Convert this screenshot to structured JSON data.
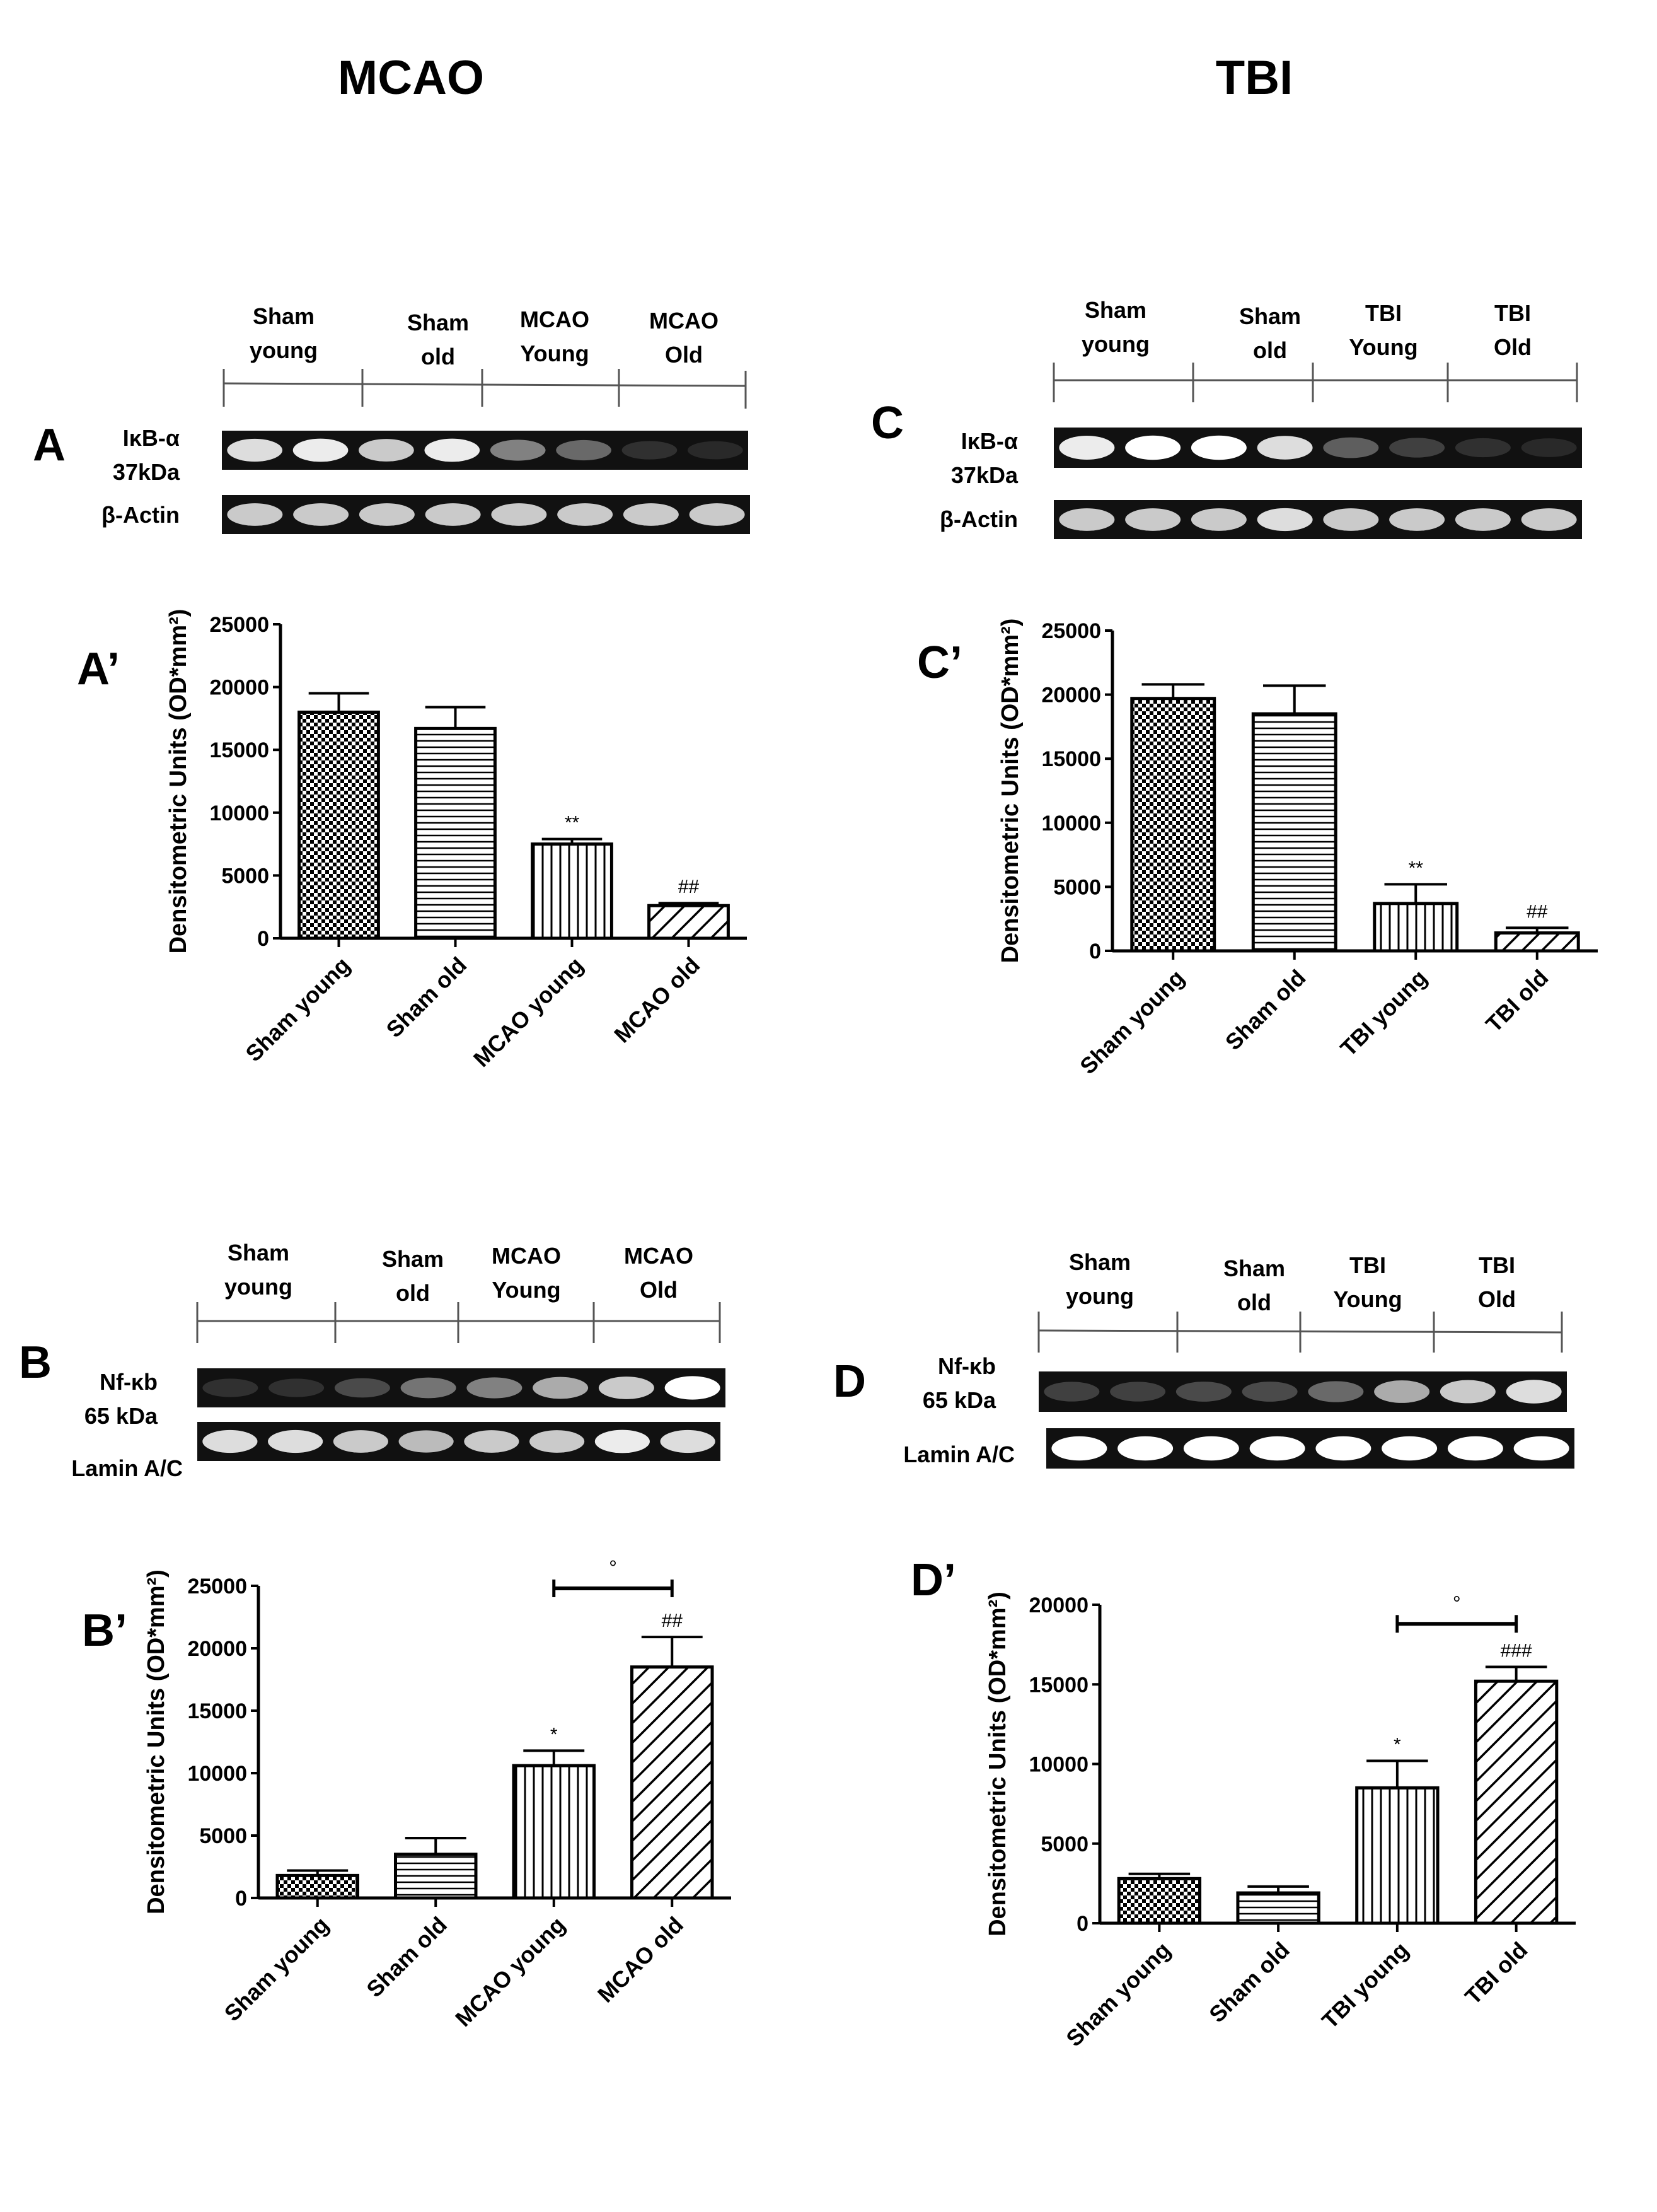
{
  "columns": {
    "left": "MCAO",
    "right": "TBI"
  },
  "panels": {
    "A": {
      "letter": "A",
      "lanes": [
        "Sham\nyoung",
        "Sham\nold",
        "MCAO\nYoung",
        "MCAO\nOld"
      ],
      "protein": "IκB-α\n37kDa",
      "loading": "β-Actin"
    },
    "C": {
      "letter": "C",
      "lanes": [
        "Sham\nyoung",
        "Sham\nold",
        "TBI\nYoung",
        "TBI\nOld"
      ],
      "protein": "IκB-α\n37kDa",
      "loading": "β-Actin"
    },
    "B": {
      "letter": "B",
      "lanes": [
        "Sham\nyoung",
        "Sham\nold",
        "MCAO\nYoung",
        "MCAO\nOld"
      ],
      "protein": "Nf-κb\n65 kDa",
      "loading": "Lamin A/C"
    },
    "D": {
      "letter": "D",
      "lanes": [
        "Sham\nyoung",
        "Sham\nold",
        "TBI\nYoung",
        "TBI\nOld"
      ],
      "protein": "Nf-κb\n65 kDa",
      "loading": "Lamin A/C"
    },
    "A2": {
      "letter": "A’"
    },
    "C2": {
      "letter": "C’"
    },
    "B2": {
      "letter": "B’"
    },
    "D2": {
      "letter": "D’"
    }
  },
  "chart_data": [
    {
      "id": "A-prime",
      "type": "bar",
      "ylabel": "Densitometric Units (OD*mm²)",
      "categories": [
        "Sham young",
        "Sham old",
        "MCAO young",
        "MCAO old"
      ],
      "values": [
        18000,
        16700,
        7500,
        2600
      ],
      "errors": [
        1500,
        1700,
        400,
        200
      ],
      "annotations": [
        "",
        "",
        "**",
        "##"
      ],
      "patterns": [
        "checker",
        "hlines",
        "vlines",
        "diag"
      ],
      "ylim": [
        0,
        25000
      ],
      "yticks": [
        0,
        5000,
        10000,
        15000,
        20000,
        25000
      ]
    },
    {
      "id": "C-prime",
      "type": "bar",
      "ylabel": "Densitometric Units (OD*mm²)",
      "categories": [
        "Sham young",
        "Sham old",
        "TBI young",
        "TBI old"
      ],
      "values": [
        19700,
        18500,
        3700,
        1400
      ],
      "errors": [
        1100,
        2200,
        1500,
        400
      ],
      "annotations": [
        "",
        "",
        "**",
        "##"
      ],
      "patterns": [
        "checker",
        "hlines",
        "vlines",
        "diag"
      ],
      "ylim": [
        0,
        25000
      ],
      "yticks": [
        0,
        5000,
        10000,
        15000,
        20000,
        25000
      ]
    },
    {
      "id": "B-prime",
      "type": "bar",
      "ylabel": "Densitometric Units (OD*mm²)",
      "categories": [
        "Sham young",
        "Sham old",
        "MCAO young",
        "MCAO old"
      ],
      "values": [
        1800,
        3500,
        10600,
        18500
      ],
      "errors": [
        400,
        1300,
        1200,
        2400
      ],
      "annotations": [
        "",
        "",
        "*",
        "##"
      ],
      "bracket": {
        "from": 2,
        "to": 3,
        "label": "°",
        "y": 24800
      },
      "patterns": [
        "checker",
        "hlines",
        "vlines",
        "diag"
      ],
      "ylim": [
        0,
        25000
      ],
      "yticks": [
        0,
        5000,
        10000,
        15000,
        20000,
        25000
      ]
    },
    {
      "id": "D-prime",
      "type": "bar",
      "ylabel": "Densitometric Units (OD*mm²)",
      "categories": [
        "Sham young",
        "Sham old",
        "TBI young",
        "TBI old"
      ],
      "values": [
        2800,
        1900,
        8500,
        15200
      ],
      "errors": [
        300,
        400,
        1700,
        900
      ],
      "annotations": [
        "",
        "",
        "*",
        "###"
      ],
      "bracket": {
        "from": 2,
        "to": 3,
        "label": "°",
        "y": 18800
      },
      "patterns": [
        "checker",
        "hlines",
        "vlines",
        "diag"
      ],
      "ylim": [
        0,
        20000
      ],
      "yticks": [
        0,
        5000,
        10000,
        15000,
        20000
      ]
    }
  ]
}
